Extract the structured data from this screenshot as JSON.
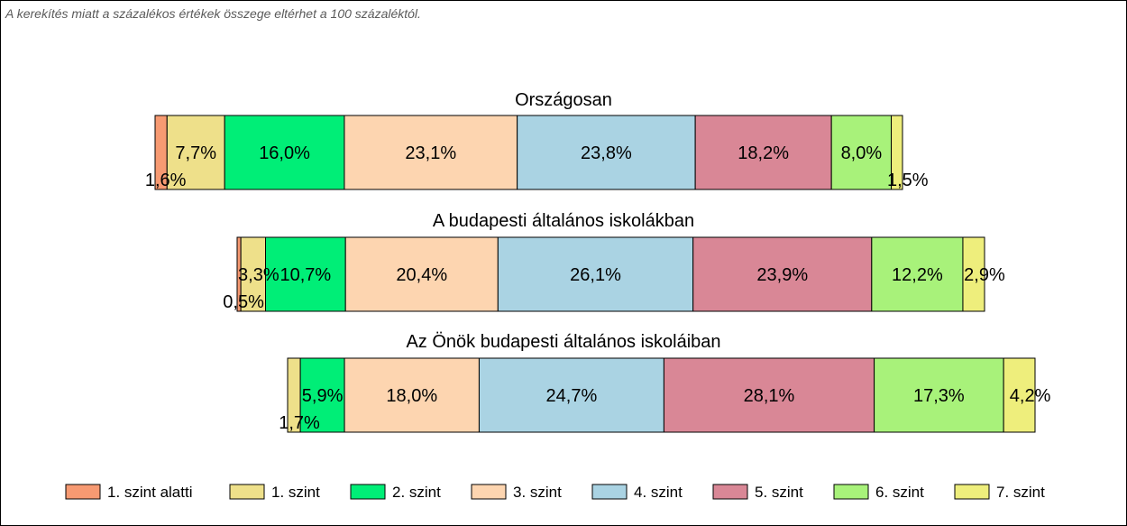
{
  "note": "A kerekítés miatt a  százalékos értékek összege eltérhet a 100 százaléktól.",
  "colors": {
    "1. szint alatti": "#f79a72",
    "1. szint": "#eee08a",
    "2. szint": "#00ee77",
    "3. szint": "#fdd5b0",
    "4. szint": "#aad3e3",
    "5. szint": "#d98796",
    "6. szint": "#a8f27a",
    "7. szint": "#eeee7c"
  },
  "chart_data": {
    "type": "bar",
    "orientation": "horizontal",
    "stacked": true,
    "categories": [
      "1. szint alatti",
      "1. szint",
      "2. szint",
      "3. szint",
      "4. szint",
      "5. szint",
      "6. szint",
      "7. szint"
    ],
    "legend_position": "bottom",
    "grid": false,
    "series": [
      {
        "name": "Országosan",
        "values": [
          1.6,
          7.7,
          16.0,
          23.1,
          23.8,
          18.2,
          8.0,
          1.5
        ],
        "labels": [
          "1,6%",
          "7,7%",
          "16,0%",
          "23,1%",
          "23,8%",
          "18,2%",
          "8,0%",
          "1,5%"
        ]
      },
      {
        "name": "A budapesti általános iskolákban",
        "values": [
          0.5,
          3.3,
          10.7,
          20.4,
          26.1,
          23.9,
          12.2,
          2.9
        ],
        "labels": [
          "0,5%",
          "3,3%",
          "10,7%",
          "20,4%",
          "26,1%",
          "23,9%",
          "12,2%",
          "2,9%"
        ]
      },
      {
        "name": "Az Önök budapesti általános iskoláiban",
        "values": [
          0,
          1.7,
          5.9,
          18.0,
          24.7,
          28.1,
          17.3,
          4.2
        ],
        "labels": [
          "",
          "1,7%",
          "5,9%",
          "18,0%",
          "24,7%",
          "28,1%",
          "17,3%",
          "4,2%"
        ]
      }
    ]
  }
}
